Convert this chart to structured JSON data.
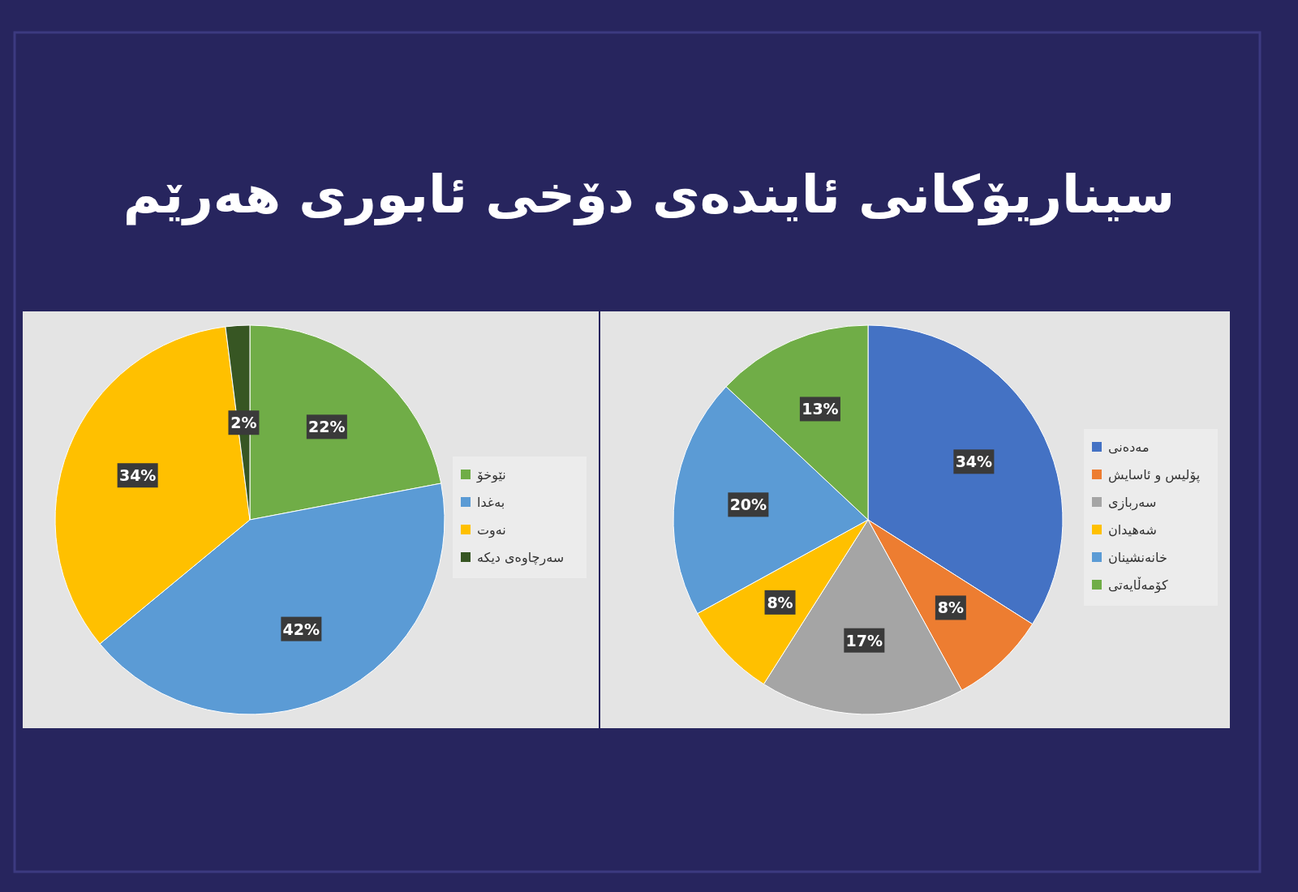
{
  "chart_data": [
    {
      "type": "pie",
      "title": "سیناریۆکانی ئایندەی دۆخی ئابوری هەرێم",
      "categories": [
        "نێوخۆ",
        "بەغدا",
        "نەوت",
        "سەرچاوەی دیکە"
      ],
      "values": [
        22,
        42,
        34,
        2
      ],
      "colors": [
        "#70ad47",
        "#5b9bd5",
        "#ffc000",
        "#375623"
      ],
      "value_labels": [
        "22%",
        "42%",
        "34%",
        "2%"
      ],
      "legend": "right"
    },
    {
      "type": "pie",
      "categories": [
        "مەدەنی",
        "پۆلیس و ئاسایش",
        "سەربازی",
        "شەهیدان",
        "خانەنشینان",
        "کۆمەڵایەتی"
      ],
      "values": [
        34,
        8,
        17,
        8,
        20,
        13
      ],
      "colors": [
        "#4472c4",
        "#ed7d31",
        "#a5a5a5",
        "#ffc000",
        "#5b9bd5",
        "#70ad47"
      ],
      "value_labels": [
        "34%",
        "8%",
        "17%",
        "8%",
        "20%",
        "13%"
      ],
      "legend": "right"
    }
  ]
}
